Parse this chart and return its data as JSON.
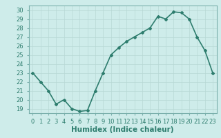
{
  "x": [
    0,
    1,
    2,
    3,
    4,
    5,
    6,
    7,
    8,
    9,
    10,
    11,
    12,
    13,
    14,
    15,
    16,
    17,
    18,
    19,
    20,
    21,
    22,
    23
  ],
  "y": [
    23,
    22,
    21,
    19.5,
    20,
    19,
    18.7,
    18.8,
    21,
    23,
    25,
    25.8,
    26.5,
    27,
    27.5,
    28,
    29.3,
    29,
    29.8,
    29.7,
    29,
    27,
    25.5,
    23
  ],
  "line_color": "#2e7d6e",
  "marker": "D",
  "marker_size": 2,
  "bg_color": "#ceecea",
  "grid_color": "#b8d8d5",
  "xlabel": "Humidex (Indice chaleur)",
  "ylim": [
    18.5,
    30.5
  ],
  "xlim": [
    -0.5,
    23.5
  ],
  "yticks": [
    19,
    20,
    21,
    22,
    23,
    24,
    25,
    26,
    27,
    28,
    29,
    30
  ],
  "xticks": [
    0,
    1,
    2,
    3,
    4,
    5,
    6,
    7,
    8,
    9,
    10,
    11,
    12,
    13,
    14,
    15,
    16,
    17,
    18,
    19,
    20,
    21,
    22,
    23
  ],
  "tick_fontsize": 6,
  "xlabel_fontsize": 7.5,
  "line_width": 1.2
}
